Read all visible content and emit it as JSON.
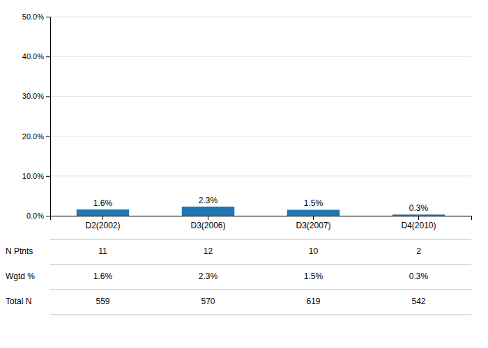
{
  "chart_data": {
    "type": "bar",
    "categories": [
      "D2(2002)",
      "D3(2006)",
      "D3(2007)",
      "D4(2010)"
    ],
    "values": [
      1.6,
      2.3,
      1.5,
      0.3
    ],
    "value_labels": [
      "1.6%",
      "2.3%",
      "1.5%",
      "0.3%"
    ],
    "data_labels": true,
    "ylim": [
      0,
      50
    ],
    "yticks": [
      {
        "value": 0,
        "label": "0.0%"
      },
      {
        "value": 10,
        "label": "10.0%"
      },
      {
        "value": 20,
        "label": "20.0%"
      },
      {
        "value": 30,
        "label": "30.0%"
      },
      {
        "value": 40,
        "label": "40.0%"
      },
      {
        "value": 50,
        "label": "50.0%"
      }
    ],
    "grid": true,
    "table_row_labels": [
      "N Ptnts",
      "Wgtd %",
      "Total N"
    ],
    "table_rows": [
      [
        "11",
        "12",
        "10",
        "2"
      ],
      [
        "1.6%",
        "2.3%",
        "1.5%",
        "0.3%"
      ],
      [
        "559",
        "570",
        "619",
        "542"
      ]
    ]
  }
}
